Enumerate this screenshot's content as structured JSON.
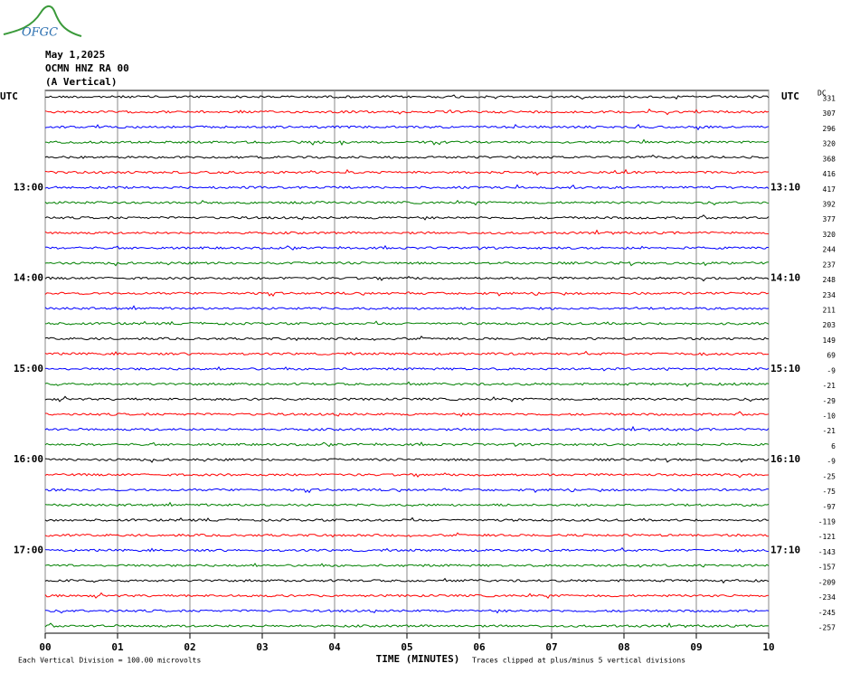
{
  "logo": "OFGC",
  "header": {
    "date": "May 1,2025",
    "station": "OCMN HNZ RA 00",
    "component": "(A Vertical)"
  },
  "chart_data": {
    "type": "helicorder",
    "x_label": "TIME (MINUTES)",
    "xlim": [
      0,
      10
    ],
    "xticks": [
      {
        "value": 0,
        "label": "00"
      },
      {
        "value": 1,
        "label": "01"
      },
      {
        "value": 2,
        "label": "02"
      },
      {
        "value": 3,
        "label": "03"
      },
      {
        "value": 4,
        "label": "04"
      },
      {
        "value": 5,
        "label": "05"
      },
      {
        "value": 6,
        "label": "06"
      },
      {
        "value": 7,
        "label": "07"
      },
      {
        "value": 8,
        "label": "08"
      },
      {
        "value": 9,
        "label": "09"
      },
      {
        "value": 10,
        "label": "10"
      }
    ],
    "grid": true,
    "left_axis_label": "UTC",
    "right_axis_label": "UTC",
    "dc_label": "DC",
    "colors": [
      "#000000",
      "#ff0000",
      "#0000ff",
      "#008000"
    ],
    "dc_offsets": [
      331,
      307,
      296,
      320,
      368,
      416,
      417,
      392,
      377,
      320,
      244,
      237,
      248,
      234,
      211,
      203,
      149,
      69,
      -9,
      -21,
      -29,
      -10,
      -21,
      6,
      -9,
      -25,
      -75,
      -97,
      -119,
      -121,
      -143,
      -157,
      -209,
      -234,
      -245,
      -257
    ],
    "left_time_labels": [
      null,
      null,
      null,
      null,
      null,
      null,
      "13:00",
      null,
      null,
      null,
      null,
      null,
      "14:00",
      null,
      null,
      null,
      null,
      null,
      "15:00",
      null,
      null,
      null,
      null,
      null,
      "16:00",
      null,
      null,
      null,
      null,
      null,
      "17:00",
      null,
      null,
      null,
      null,
      null
    ],
    "right_time_labels": [
      null,
      null,
      null,
      null,
      null,
      null,
      "13:10",
      null,
      null,
      null,
      null,
      null,
      "14:10",
      null,
      null,
      null,
      null,
      null,
      "15:10",
      null,
      null,
      null,
      null,
      null,
      "16:10",
      null,
      null,
      null,
      null,
      null,
      "17:10",
      null,
      null,
      null,
      null,
      null
    ],
    "scale_note": "Each Vertical Division =  100.00 microvolts",
    "clip_note": "Traces clipped at plus/minus 5 vertical divisions"
  }
}
